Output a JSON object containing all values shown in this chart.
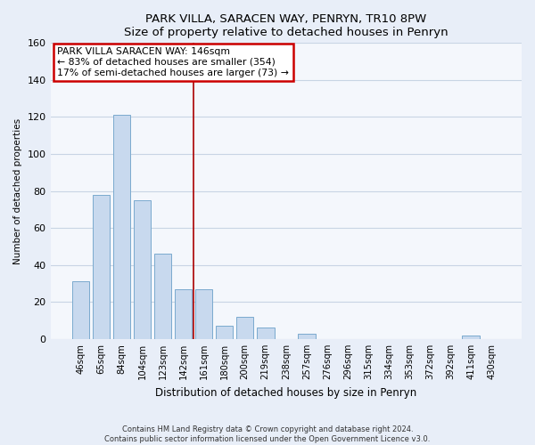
{
  "title": "PARK VILLA, SARACEN WAY, PENRYN, TR10 8PW",
  "subtitle": "Size of property relative to detached houses in Penryn",
  "xlabel": "Distribution of detached houses by size in Penryn",
  "ylabel": "Number of detached properties",
  "bar_labels": [
    "46sqm",
    "65sqm",
    "84sqm",
    "104sqm",
    "123sqm",
    "142sqm",
    "161sqm",
    "180sqm",
    "200sqm",
    "219sqm",
    "238sqm",
    "257sqm",
    "276sqm",
    "296sqm",
    "315sqm",
    "334sqm",
    "353sqm",
    "372sqm",
    "392sqm",
    "411sqm",
    "430sqm"
  ],
  "bar_values": [
    31,
    78,
    121,
    75,
    46,
    27,
    27,
    7,
    12,
    6,
    0,
    3,
    0,
    0,
    0,
    0,
    0,
    0,
    0,
    2,
    0
  ],
  "bar_color": "#c8d9ee",
  "bar_edge_color": "#7aaace",
  "ylim": [
    0,
    160
  ],
  "yticks": [
    0,
    20,
    40,
    60,
    80,
    100,
    120,
    140,
    160
  ],
  "property_line_x": 5.5,
  "property_line_color": "#aa0000",
  "annotation_title": "PARK VILLA SARACEN WAY: 146sqm",
  "annotation_line1": "← 83% of detached houses are smaller (354)",
  "annotation_line2": "17% of semi-detached houses are larger (73) →",
  "annotation_box_color": "#cc0000",
  "footer_line1": "Contains HM Land Registry data © Crown copyright and database right 2024.",
  "footer_line2": "Contains public sector information licensed under the Open Government Licence v3.0.",
  "background_color": "#e8eef8",
  "plot_bg_color": "#f4f7fc",
  "grid_color": "#c8d4e4"
}
